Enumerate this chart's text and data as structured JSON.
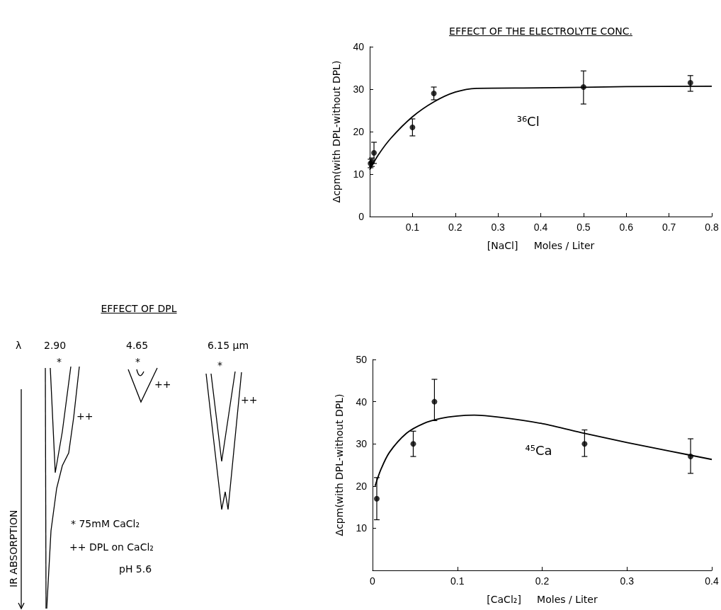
{
  "chart_data": [
    {
      "type": "scatter",
      "title": "EFFECT OF THE ELECTROLYTE CONC.",
      "xlabel": "[NaCl]     Moles / Liter",
      "ylabel": "Δcpm(with DPL-without DPL)",
      "xlim": [
        0,
        0.8
      ],
      "xticks": [
        0.1,
        0.2,
        0.3,
        0.4,
        0.5,
        0.6,
        0.7,
        0.8
      ],
      "ylim": [
        0,
        40
      ],
      "yticks": [
        0,
        10,
        20,
        30,
        40
      ],
      "grid": false,
      "marker": "circle",
      "annotations": [
        "³⁶Cl"
      ],
      "series": [
        {
          "type": "scatter",
          "color": "#000000",
          "x": [
            0.002,
            0.005,
            0.01,
            0.1,
            0.15,
            0.5,
            0.75
          ],
          "values": [
            12.5,
            12.8,
            15,
            21,
            29,
            30.5,
            31.5
          ],
          "errors": [
            1,
            1,
            2.5,
            2,
            1.5,
            [
              26.5,
              34.3
            ],
            [
              29.5,
              33.2
            ]
          ]
        },
        {
          "type": "line",
          "color": "#000000",
          "marker": "none",
          "x": [
            0,
            0.02,
            0.05,
            0.1,
            0.15,
            0.2,
            0.25,
            0.4,
            0.6,
            0.8
          ],
          "values": [
            11,
            14.5,
            18.5,
            23.5,
            27,
            29.3,
            30.2,
            30.3,
            30.6,
            30.7
          ]
        }
      ]
    },
    {
      "type": "other",
      "title": "EFFECT OF DPL",
      "ylabel": "IR ABSORPTION",
      "annotations": [
        "λ",
        "2.90",
        "4.65",
        "6.15 µm",
        "*",
        "++",
        "*",
        "++",
        "*",
        "++",
        "*  75mM CaCl₂",
        "++  DPL on CaCl₂",
        "pH 5.6"
      ]
    },
    {
      "type": "scatter",
      "xlabel": "[CaCl₂]     Moles / Liter",
      "ylabel": "Δcpm(with DPL-without DPL)",
      "xlim": [
        0,
        0.4
      ],
      "xticks": [
        0,
        0.1,
        0.2,
        0.3,
        0.4
      ],
      "ylim": [
        0,
        50
      ],
      "yticks": [
        10,
        20,
        30,
        40,
        50
      ],
      "grid": false,
      "marker": "circle",
      "annotations": [
        "⁴⁵Ca"
      ],
      "series": [
        {
          "type": "scatter",
          "color": "#000000",
          "x": [
            0.005,
            0.048,
            0.073,
            0.25,
            0.375
          ],
          "values": [
            17,
            30,
            40,
            30,
            27
          ],
          "errors": [
            5,
            3,
            [
              35.5,
              45.3
            ],
            [
              27,
              33.3
            ],
            [
              23,
              31.2
            ]
          ]
        },
        {
          "type": "line",
          "color": "#000000",
          "marker": "none",
          "x": [
            0.003,
            0.01,
            0.02,
            0.04,
            0.06,
            0.08,
            0.1,
            0.12,
            0.15,
            0.2,
            0.25,
            0.3,
            0.35,
            0.4
          ],
          "values": [
            20,
            24,
            28,
            32.5,
            34.8,
            36,
            36.6,
            36.8,
            36.3,
            34.8,
            32.5,
            30.3,
            28.3,
            26.3
          ]
        }
      ]
    }
  ]
}
